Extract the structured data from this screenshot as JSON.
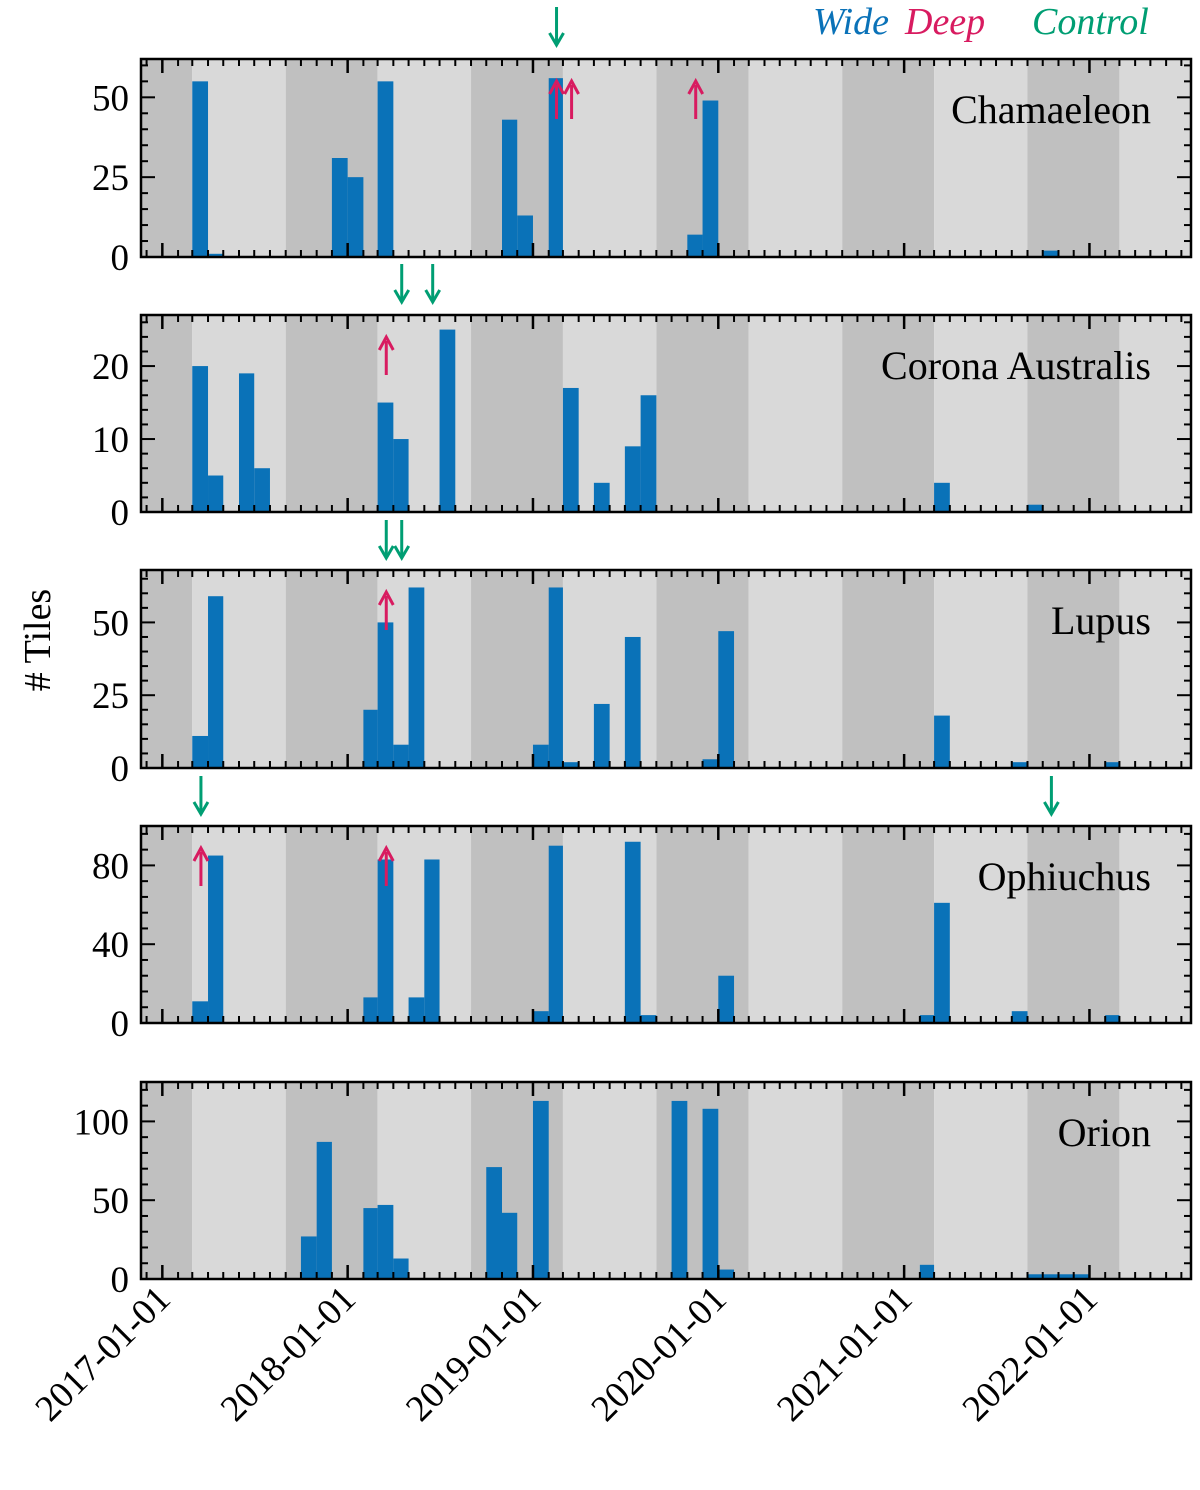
{
  "legend": [
    {
      "label": "Wide",
      "color": "#0a72b8"
    },
    {
      "label": "Deep",
      "color": "#d81b60"
    },
    {
      "label": "Control",
      "color": "#009e73"
    }
  ],
  "colors": {
    "bar": "#0a72b8",
    "band_dark": "#c0c0c0",
    "band_light": "#d9d9d9",
    "deep": "#d81b60",
    "control": "#009e73"
  },
  "chart_data": {
    "type": "bar",
    "ylabel": "# Tiles",
    "xlabel": "",
    "x_tick_labels": [
      "2017-01-01",
      "2018-01-01",
      "2019-01-01",
      "2020-01-01",
      "2021-01-01",
      "2022-01-01"
    ],
    "x_range": [
      "2016-11-20",
      "2022-07-20"
    ],
    "bin_width_months": 1,
    "panels": [
      {
        "name": "Chamaeleon",
        "ylim": [
          0,
          62
        ],
        "yticks": [
          0,
          25,
          50
        ],
        "bars": [
          [
            "2017-03",
            55
          ],
          [
            "2017-04",
            1
          ],
          [
            "2017-12",
            31
          ],
          [
            "2018-01",
            25
          ],
          [
            "2018-03",
            55
          ],
          [
            "2018-11",
            43
          ],
          [
            "2018-12",
            13
          ],
          [
            "2019-02",
            56
          ],
          [
            "2019-11",
            7
          ],
          [
            "2019-12",
            49
          ],
          [
            "2021-10",
            2
          ]
        ],
        "deep_arrows": [
          "2019-02",
          "2019-03",
          "2019-11"
        ],
        "control_arrows": [
          "2019-02"
        ]
      },
      {
        "name": "Corona Australis",
        "ylim": [
          0,
          27
        ],
        "yticks": [
          0,
          10,
          20
        ],
        "bars": [
          [
            "2017-03",
            20
          ],
          [
            "2017-04",
            5
          ],
          [
            "2017-06",
            19
          ],
          [
            "2017-07",
            6
          ],
          [
            "2018-03",
            15
          ],
          [
            "2018-04",
            10
          ],
          [
            "2018-07",
            25
          ],
          [
            "2019-03",
            17
          ],
          [
            "2019-05",
            4
          ],
          [
            "2019-07",
            9
          ],
          [
            "2019-08",
            16
          ],
          [
            "2021-03",
            4
          ],
          [
            "2021-09",
            1
          ]
        ],
        "deep_arrows": [
          "2018-03"
        ],
        "control_arrows": [
          "2018-04",
          "2018-06"
        ]
      },
      {
        "name": "Lupus",
        "ylim": [
          0,
          68
        ],
        "yticks": [
          0,
          25,
          50
        ],
        "bars": [
          [
            "2017-03",
            11
          ],
          [
            "2017-04",
            59
          ],
          [
            "2018-02",
            20
          ],
          [
            "2018-03",
            50
          ],
          [
            "2018-04",
            8
          ],
          [
            "2018-05",
            62
          ],
          [
            "2019-01",
            8
          ],
          [
            "2019-02",
            62
          ],
          [
            "2019-03",
            2
          ],
          [
            "2019-05",
            22
          ],
          [
            "2019-07",
            45
          ],
          [
            "2019-12",
            3
          ],
          [
            "2020-01",
            47
          ],
          [
            "2021-03",
            18
          ],
          [
            "2021-08",
            2
          ],
          [
            "2022-02",
            2
          ]
        ],
        "deep_arrows": [
          "2018-03"
        ],
        "control_arrows": [
          "2018-03",
          "2018-04"
        ]
      },
      {
        "name": "Ophiuchus",
        "ylim": [
          0,
          100
        ],
        "yticks": [
          0,
          40,
          80
        ],
        "bars": [
          [
            "2017-03",
            11
          ],
          [
            "2017-04",
            85
          ],
          [
            "2018-02",
            13
          ],
          [
            "2018-03",
            83
          ],
          [
            "2018-05",
            13
          ],
          [
            "2018-06",
            83
          ],
          [
            "2019-01",
            6
          ],
          [
            "2019-02",
            90
          ],
          [
            "2019-07",
            92
          ],
          [
            "2019-08",
            4
          ],
          [
            "2020-01",
            24
          ],
          [
            "2021-02",
            4
          ],
          [
            "2021-03",
            61
          ],
          [
            "2021-08",
            6
          ],
          [
            "2022-02",
            4
          ]
        ],
        "deep_arrows": [
          "2017-03",
          "2018-03"
        ],
        "control_arrows": [
          "2017-03",
          "2021-10"
        ]
      },
      {
        "name": "Orion",
        "ylim": [
          0,
          125
        ],
        "yticks": [
          0,
          50,
          100
        ],
        "bars": [
          [
            "2017-10",
            27
          ],
          [
            "2017-11",
            87
          ],
          [
            "2018-02",
            45
          ],
          [
            "2018-03",
            47
          ],
          [
            "2018-04",
            13
          ],
          [
            "2018-10",
            71
          ],
          [
            "2018-11",
            42
          ],
          [
            "2019-01",
            113
          ],
          [
            "2019-10",
            113
          ],
          [
            "2019-12",
            108
          ],
          [
            "2020-01",
            6
          ],
          [
            "2021-02",
            9
          ],
          [
            "2021-09",
            3
          ],
          [
            "2021-10",
            3
          ],
          [
            "2021-11",
            3
          ],
          [
            "2021-12",
            3
          ]
        ],
        "deep_arrows": [],
        "control_arrows": []
      }
    ]
  }
}
